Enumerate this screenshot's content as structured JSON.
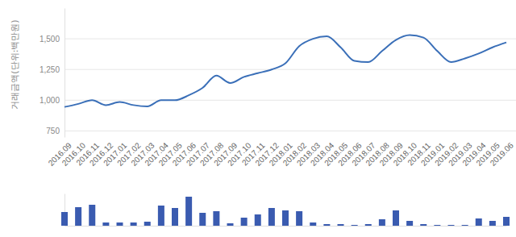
{
  "chart_data": [
    {
      "type": "line",
      "y_label": "거래금액(단위:백만원)",
      "categories": [
        "2016.09",
        "2016.10",
        "2016.11",
        "2016.12",
        "2017.01",
        "2017.02",
        "2017.03",
        "2017.04",
        "2017.05",
        "2017.06",
        "2017.07",
        "2017.08",
        "2017.09",
        "2017.10",
        "2017.11",
        "2017.12",
        "2018.01",
        "2018.02",
        "2018.03",
        "2018.04",
        "2018.05",
        "2018.06",
        "2018.07",
        "2018.08",
        "2018.09",
        "2018.10",
        "2018.11",
        "2019.01",
        "2019.02",
        "2019.03",
        "2019.04",
        "2019.05",
        "2019.06"
      ],
      "values": [
        945,
        970,
        1000,
        960,
        985,
        960,
        950,
        1000,
        1000,
        1040,
        1100,
        1200,
        1140,
        1190,
        1220,
        1250,
        1300,
        1440,
        1500,
        1520,
        1430,
        1320,
        1310,
        1400,
        1490,
        1530,
        1510,
        1400,
        1310,
        1340,
        1380,
        1430,
        1470
      ],
      "color": "#3a6fb8",
      "ylim": [
        700,
        1750
      ],
      "yticks": [
        750,
        {
          "value": 1000,
          "label": "1,000"
        },
        {
          "value": 1250,
          "label": "1,250"
        },
        {
          "value": 1500,
          "label": "1,500"
        }
      ],
      "grid": true
    },
    {
      "type": "bar",
      "categories": [
        "2016.09",
        "2016.10",
        "2016.11",
        "2016.12",
        "2017.01",
        "2017.02",
        "2017.03",
        "2017.04",
        "2017.05",
        "2017.06",
        "2017.07",
        "2017.08",
        "2017.09",
        "2017.10",
        "2017.11",
        "2017.12",
        "2018.01",
        "2018.02",
        "2018.03",
        "2018.04",
        "2018.05",
        "2018.06",
        "2018.07",
        "2018.08",
        "2018.09",
        "2018.10",
        "2018.11",
        "2019.01",
        "2019.02",
        "2019.03",
        "2019.04",
        "2019.05",
        "2019.06"
      ],
      "values": [
        17,
        23,
        26,
        4,
        4,
        4,
        5,
        25,
        22,
        36,
        16,
        18,
        3,
        10,
        14,
        22,
        19,
        18,
        4,
        2,
        2,
        1,
        2,
        8,
        19,
        6,
        2,
        1,
        1,
        1,
        9,
        6,
        11
      ],
      "color": "#3a5bb0",
      "ylim": [
        0,
        40
      ],
      "tick_labels": false
    }
  ]
}
